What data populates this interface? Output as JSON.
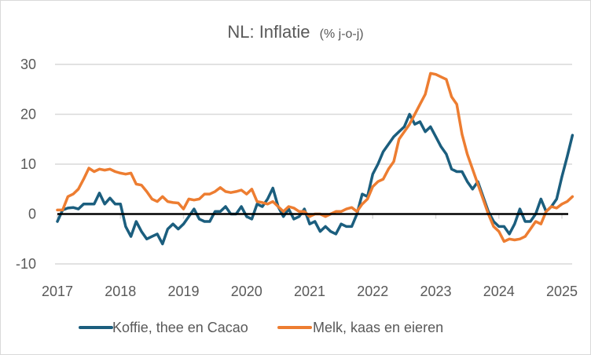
{
  "chart_data": {
    "type": "line",
    "title": "NL: Inflatie",
    "subtitle": "(% j-o-j)",
    "xlabel": "",
    "ylabel": "",
    "ylim": [
      -10,
      30
    ],
    "yticks": [
      "-10",
      "0",
      "10",
      "20",
      "30"
    ],
    "ytick_values": [
      -10,
      0,
      10,
      20,
      30
    ],
    "xlim": [
      2017.0,
      2025.1
    ],
    "xticks": [
      "2017",
      "2018",
      "2019",
      "2020",
      "2021",
      "2022",
      "2023",
      "2024",
      "2025"
    ],
    "xtick_values": [
      2017,
      2018,
      2019,
      2020,
      2021,
      2022,
      2023,
      2024,
      2025
    ],
    "grid": true,
    "zero_line": true,
    "legend_position": "bottom",
    "x_start": "2017-01",
    "x_step": "month",
    "series": [
      {
        "name": "Koffie, thee en Cacao",
        "color": "#1B5E7E",
        "values": [
          -1.5,
          0.8,
          1.2,
          1.3,
          1.0,
          2.0,
          2.0,
          2.0,
          4.2,
          2.0,
          3.2,
          2.0,
          2.0,
          -2.5,
          -4.5,
          -1.5,
          -3.5,
          -5.0,
          -4.5,
          -4.0,
          -6.0,
          -3.0,
          -2.0,
          -3.0,
          -2.0,
          -0.5,
          1.0,
          -1.0,
          -1.5,
          -1.5,
          0.5,
          0.5,
          1.5,
          0.0,
          0.0,
          1.5,
          -0.5,
          -1.0,
          2.0,
          1.5,
          3.0,
          5.2,
          1.5,
          -0.5,
          1.0,
          -1.0,
          -0.5,
          1.0,
          -2.0,
          -1.5,
          -3.5,
          -2.5,
          -3.5,
          -4.0,
          -2.0,
          -2.5,
          -2.5,
          0.0,
          4.0,
          3.5,
          8.0,
          10.0,
          12.5,
          14.0,
          15.5,
          16.5,
          17.5,
          20.0,
          18.0,
          18.5,
          16.5,
          17.5,
          15.5,
          13.5,
          12.0,
          9.0,
          8.5,
          8.5,
          6.5,
          5.0,
          6.5,
          3.5,
          0.5,
          -1.5,
          -2.5,
          -2.5,
          -4.0,
          -2.0,
          1.0,
          -1.5,
          -1.5,
          0.0,
          3.0,
          0.5,
          1.5,
          3.0,
          7.5,
          11.5,
          15.8
        ]
      },
      {
        "name": "Melk, kaas en eieren",
        "color": "#ED7D31",
        "values": [
          0.8,
          0.8,
          3.5,
          4.0,
          5.0,
          7.0,
          9.2,
          8.5,
          9.0,
          8.8,
          9.0,
          8.5,
          8.2,
          8.0,
          8.2,
          6.0,
          5.8,
          4.5,
          3.0,
          2.5,
          3.5,
          2.5,
          2.3,
          2.2,
          1.0,
          3.0,
          2.8,
          3.0,
          4.0,
          4.0,
          4.5,
          5.3,
          4.5,
          4.3,
          4.5,
          4.8,
          4.0,
          5.0,
          2.5,
          2.3,
          2.0,
          2.5,
          1.5,
          0.5,
          1.5,
          1.2,
          0.5,
          0.5,
          -0.5,
          0.0,
          0.0,
          -0.5,
          0.0,
          0.5,
          0.5,
          1.0,
          1.3,
          0.5,
          2.0,
          3.0,
          5.5,
          6.5,
          7.0,
          9.0,
          10.5,
          15.0,
          16.5,
          18.0,
          20.0,
          22.0,
          24.0,
          28.2,
          28.0,
          27.5,
          27.0,
          23.5,
          22.0,
          16.0,
          12.0,
          9.0,
          6.0,
          3.0,
          0.0,
          -2.5,
          -3.5,
          -5.5,
          -5.0,
          -5.2,
          -5.0,
          -4.5,
          -3.0,
          -1.5,
          -2.0,
          0.5,
          1.5,
          1.2,
          2.0,
          2.5,
          3.5
        ]
      }
    ]
  }
}
